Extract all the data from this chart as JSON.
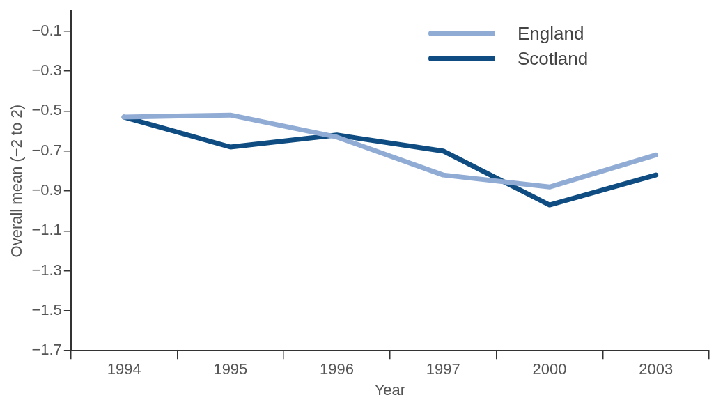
{
  "chart_data": {
    "type": "line",
    "xlabel": "Year",
    "ylabel": "Overall mean (−2 to 2)",
    "categories": [
      "1994",
      "1995",
      "1996",
      "1997",
      "2000",
      "2003"
    ],
    "series": [
      {
        "name": "England",
        "color": "#91acd4",
        "values": [
          -0.53,
          -0.52,
          -0.63,
          -0.82,
          -0.88,
          -0.72
        ]
      },
      {
        "name": "Scotland",
        "color": "#0f4c81",
        "values": [
          -0.53,
          -0.68,
          -0.62,
          -0.7,
          -0.97,
          -0.82
        ]
      }
    ],
    "ylim": [
      -1.7,
      0
    ],
    "yticks": [
      {
        "value": -0.1,
        "label": "−0.1"
      },
      {
        "value": -0.3,
        "label": "−0.3"
      },
      {
        "value": -0.5,
        "label": "−0.5"
      },
      {
        "value": -0.7,
        "label": "−0.7"
      },
      {
        "value": -0.9,
        "label": "−0.9"
      },
      {
        "value": -1.1,
        "label": "−1.1"
      },
      {
        "value": -1.3,
        "label": "−1.3"
      },
      {
        "value": -1.5,
        "label": "−1.5"
      },
      {
        "value": -1.7,
        "label": "−1.7"
      }
    ],
    "grid": false,
    "legend": "top right",
    "marker": "none",
    "line_style": "solid"
  }
}
